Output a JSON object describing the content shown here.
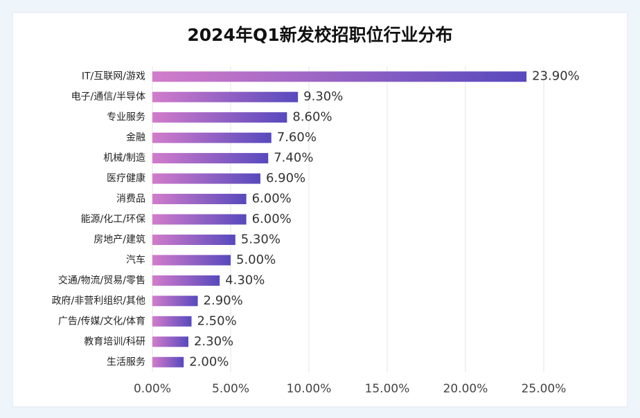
{
  "chart_data": {
    "type": "bar",
    "orientation": "horizontal",
    "title": "2024年Q1新发校招职位行业分布",
    "categories": [
      "IT/互联网/游戏",
      "电子/通信/半导体",
      "专业服务",
      "金融",
      "机械/制造",
      "医疗健康",
      "消费品",
      "能源/化工/环保",
      "房地产/建筑",
      "汽车",
      "交通/物流/贸易/零售",
      "政府/非营利组织/其他",
      "广告/传媒/文化/体育",
      "教育培训/科研",
      "生活服务"
    ],
    "values": [
      23.9,
      9.3,
      8.6,
      7.6,
      7.4,
      6.9,
      6.0,
      6.0,
      5.3,
      5.0,
      4.3,
      2.9,
      2.5,
      2.3,
      2.0
    ],
    "value_labels": [
      "23.90%",
      "9.30%",
      "8.60%",
      "7.60%",
      "7.40%",
      "6.90%",
      "6.00%",
      "6.00%",
      "5.30%",
      "5.00%",
      "4.30%",
      "2.90%",
      "2.50%",
      "2.30%",
      "2.00%"
    ],
    "colors": [
      "#d27ccb",
      "#5749bd"
    ],
    "xlim": [
      0,
      25
    ],
    "xticks": [
      {
        "value": 0,
        "label": "0.00%"
      },
      {
        "value": 5,
        "label": "5.00%"
      },
      {
        "value": 10,
        "label": "10.00%"
      },
      {
        "value": 15,
        "label": "15.00%"
      },
      {
        "value": 20,
        "label": "20.00%"
      },
      {
        "value": 25,
        "label": "25.00%"
      }
    ],
    "grid": true
  }
}
